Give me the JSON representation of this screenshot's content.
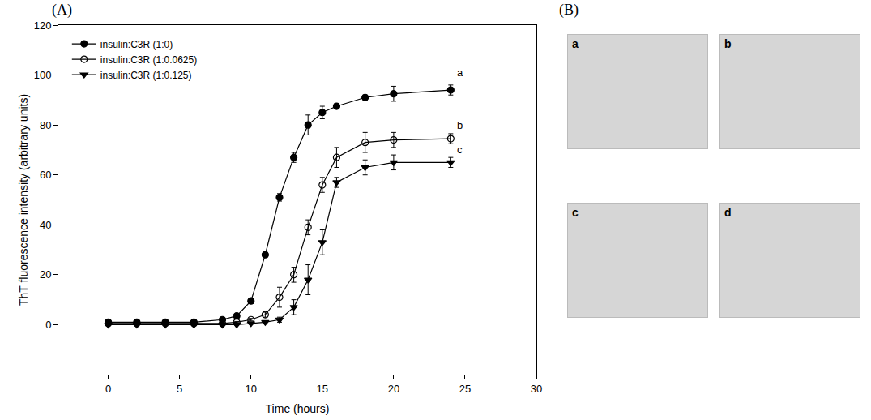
{
  "chart_data": {
    "type": "line",
    "panel_label": "(A)",
    "x_label": "Time (hours)",
    "y_label": "ThT fluorescence intensity (arbitrary units)",
    "x": [
      0,
      2,
      4,
      6,
      8,
      9,
      10,
      11,
      12,
      13,
      14,
      15,
      16,
      18,
      20,
      24
    ],
    "series": [
      {
        "name": "insulin:C3R (1:0)",
        "color": "#000000",
        "marker": "circle",
        "values": [
          1,
          1,
          1,
          1,
          2,
          3.5,
          9.5,
          28,
          51,
          67,
          80,
          85,
          87.5,
          91,
          92.5,
          94
        ],
        "error": [
          0.5,
          0.5,
          0.5,
          0.5,
          0.5,
          0.5,
          1,
          1,
          1.5,
          2,
          4,
          2.5,
          1,
          1,
          3,
          2
        ]
      },
      {
        "name": "insulin:C3R (1:0.0625)",
        "color": "#000000",
        "marker": "circle-open",
        "values": [
          0.5,
          0.5,
          0.5,
          0.5,
          0.5,
          1,
          2,
          4,
          11,
          20,
          39,
          56,
          67,
          73,
          74,
          74.5
        ],
        "error": [
          0.3,
          0.3,
          0.3,
          0.3,
          0.3,
          0.3,
          0.5,
          1,
          4,
          3,
          3,
          3,
          4,
          4,
          3,
          2
        ]
      },
      {
        "name": "insulin:C3R (1:0.125)",
        "color": "#000000",
        "marker": "triangle-down",
        "values": [
          0,
          0,
          0,
          0,
          0,
          0,
          0.5,
          1,
          2,
          7,
          18,
          33,
          57,
          63,
          65,
          65
        ],
        "error": [
          0.2,
          0.2,
          0.2,
          0.2,
          0.2,
          0.2,
          0.3,
          0.5,
          1,
          3,
          6,
          5,
          2,
          3,
          3,
          2
        ]
      }
    ],
    "annotations": [
      {
        "text": "a",
        "x": 24.3,
        "y": 101
      },
      {
        "text": "b",
        "x": 24.3,
        "y": 80
      },
      {
        "text": "c",
        "x": 24.3,
        "y": 70
      }
    ],
    "xlim": [
      -3.5,
      30
    ],
    "xticks": [
      0,
      5,
      10,
      15,
      20,
      25,
      30
    ],
    "ylim": [
      -20,
      120
    ],
    "yticks": [
      0,
      20,
      40,
      60,
      80,
      100,
      120
    ],
    "grid": false,
    "legend": "upper left"
  },
  "micrographs": {
    "panel_label": "(B)",
    "images": [
      "a",
      "b",
      "c",
      "d"
    ]
  }
}
